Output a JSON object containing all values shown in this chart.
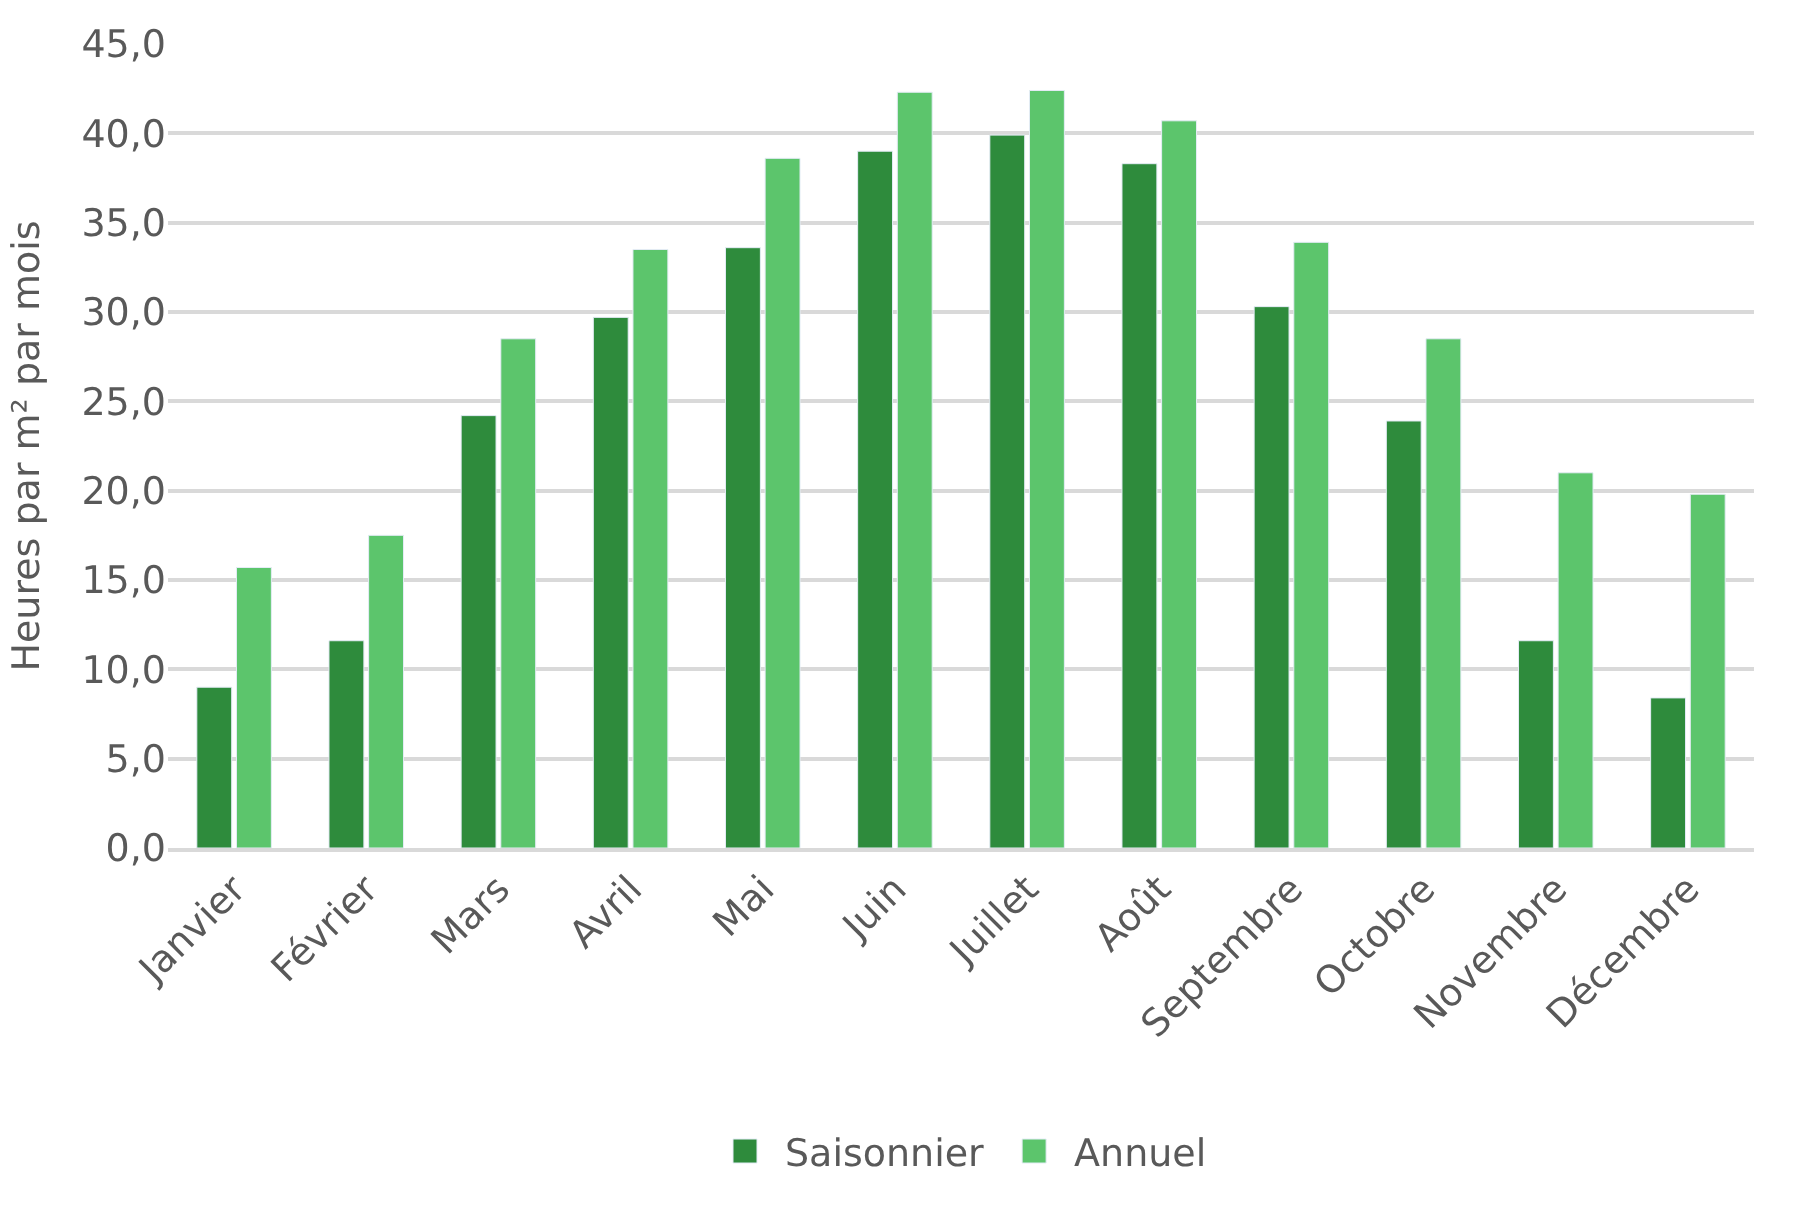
{
  "chart_data": {
    "type": "bar",
    "ylabel": "Heures par m² par mois",
    "categories": [
      "Janvier",
      "Février",
      "Mars",
      "Avril",
      "Mai",
      "Juin",
      "Juillet",
      "Août",
      "Septembre",
      "Octobre",
      "Novembre",
      "Décembre"
    ],
    "series": [
      {
        "name": "Saisonnier",
        "color": "#2e8b3c",
        "values": [
          9.0,
          11.6,
          24.2,
          29.7,
          33.6,
          39.0,
          39.9,
          38.3,
          30.3,
          23.9,
          11.6,
          8.4
        ]
      },
      {
        "name": "Annuel",
        "color": "#5cc56c",
        "values": [
          15.7,
          17.5,
          28.5,
          33.5,
          38.6,
          42.3,
          42.4,
          40.7,
          33.9,
          28.5,
          21.0,
          19.8
        ]
      }
    ],
    "ylim": [
      0,
      45
    ],
    "yticks": [
      {
        "value": 0,
        "label": "0,0"
      },
      {
        "value": 5,
        "label": "5,0"
      },
      {
        "value": 10,
        "label": "10,0"
      },
      {
        "value": 15,
        "label": "15,0"
      },
      {
        "value": 20,
        "label": "20,0"
      },
      {
        "value": 25,
        "label": "25,0"
      },
      {
        "value": 30,
        "label": "30,0"
      },
      {
        "value": 35,
        "label": "35,0"
      },
      {
        "value": 40,
        "label": "40,0"
      },
      {
        "value": 45,
        "label": "45,0"
      }
    ],
    "grid": "y",
    "legend": "bottom"
  }
}
